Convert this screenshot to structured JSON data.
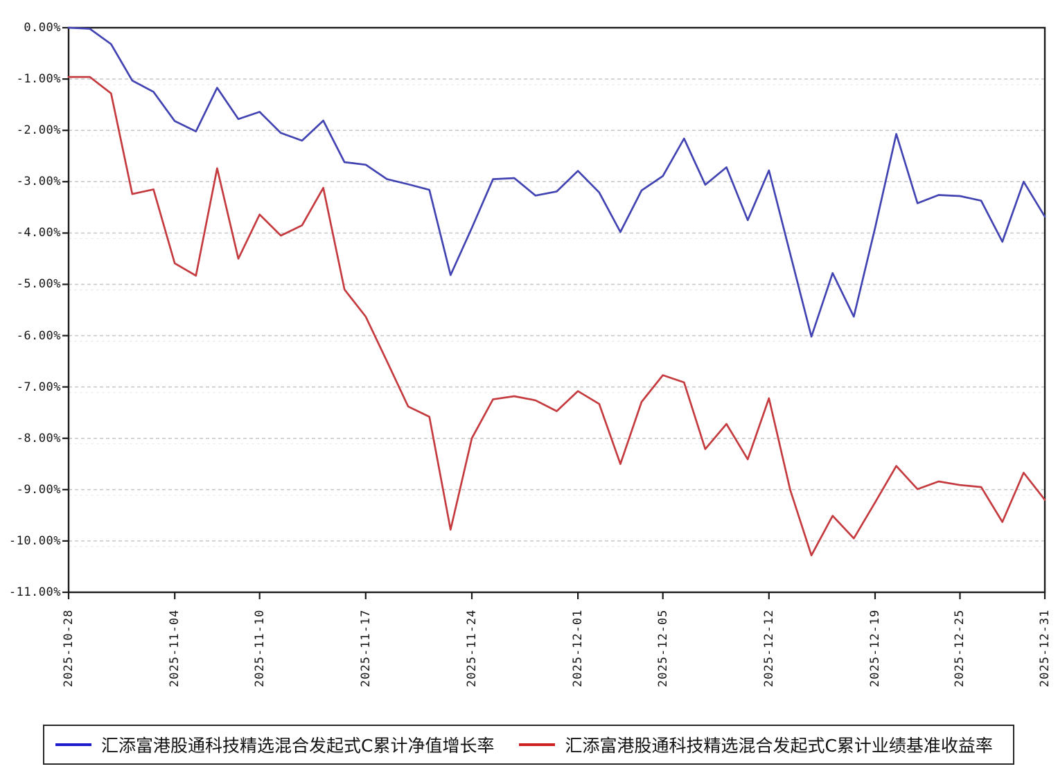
{
  "chart_data": {
    "type": "line",
    "title": "",
    "xlabel": "",
    "ylabel": "",
    "ylim": [
      -11,
      0
    ],
    "grid": "horizontal-dashed",
    "legend_position": "bottom-boxed",
    "background": "#ffffff",
    "axis_color": "#1a1a1a",
    "grid_color": "#c6c6c6",
    "grid_echo_color": "#ececec",
    "tick_label_color": "#141414",
    "y_tick_labels": [
      "0.00%",
      "-1.00%",
      "-2.00%",
      "-3.00%",
      "-4.00%",
      "-5.00%",
      "-6.00%",
      "-7.00%",
      "-8.00%",
      "-9.00%",
      "-10.00%",
      "-11.00%"
    ],
    "x_tick_dates": [
      "2025-10-28",
      "2025-11-04",
      "2025-11-10",
      "2025-11-17",
      "2025-11-24",
      "2025-12-01",
      "2025-12-05",
      "2025-12-12",
      "2025-12-19",
      "2025-12-25",
      "2025-12-31"
    ],
    "x_tick_indices": [
      0,
      5,
      9,
      14,
      19,
      24,
      28,
      33,
      38,
      42,
      46
    ],
    "x": [
      "2025-10-28",
      "2025-10-29",
      "2025-10-30",
      "2025-10-31",
      "2025-11-03",
      "2025-11-04",
      "2025-11-05",
      "2025-11-06",
      "2025-11-07",
      "2025-11-10",
      "2025-11-11",
      "2025-11-12",
      "2025-11-13",
      "2025-11-14",
      "2025-11-17",
      "2025-11-18",
      "2025-11-19",
      "2025-11-20",
      "2025-11-21",
      "2025-11-24",
      "2025-11-25",
      "2025-11-26",
      "2025-11-27",
      "2025-11-28",
      "2025-12-01",
      "2025-12-02",
      "2025-12-03",
      "2025-12-04",
      "2025-12-05",
      "2025-12-08",
      "2025-12-09",
      "2025-12-10",
      "2025-12-11",
      "2025-12-12",
      "2025-12-15",
      "2025-12-16",
      "2025-12-17",
      "2025-12-18",
      "2025-12-19",
      "2025-12-22",
      "2025-12-23",
      "2025-12-24",
      "2025-12-25",
      "2025-12-26",
      "2025-12-29",
      "2025-12-30",
      "2025-12-31"
    ],
    "series": [
      {
        "name": "汇添富港股通科技精选混合发起式C累计净值增长率",
        "color": "#1c1ccb",
        "line_color": "#4143b2",
        "values": [
          0.0,
          -0.02,
          -0.32,
          -1.03,
          -1.25,
          -1.82,
          -2.02,
          -1.17,
          -1.78,
          -1.64,
          -2.05,
          -2.2,
          -1.81,
          -2.62,
          -2.67,
          -2.95,
          -3.05,
          -3.16,
          -4.82,
          -3.9,
          -2.95,
          -2.93,
          -3.27,
          -3.19,
          -2.79,
          -3.21,
          -3.98,
          -3.17,
          -2.89,
          -2.16,
          -3.06,
          -2.72,
          -3.75,
          -2.78,
          -4.4,
          -6.02,
          -4.78,
          -5.63,
          -3.9,
          -2.07,
          -3.42,
          -3.26,
          -3.28,
          -3.37,
          -4.17,
          -3.0,
          -3.68
        ]
      },
      {
        "name": "汇添富港股通科技精选混合发起式C累计业绩基准收益率",
        "color": "#cc2222",
        "line_color": "#c43a3e",
        "values": [
          -0.96,
          -0.96,
          -1.28,
          -3.24,
          -3.15,
          -4.59,
          -4.83,
          -2.74,
          -4.5,
          -3.64,
          -4.05,
          -3.85,
          -3.12,
          -5.1,
          -5.63,
          -6.5,
          -7.38,
          -7.58,
          -9.78,
          -8.0,
          -7.24,
          -7.18,
          -7.26,
          -7.47,
          -7.08,
          -7.33,
          -8.5,
          -7.29,
          -6.77,
          -6.91,
          -8.21,
          -7.72,
          -8.41,
          -7.22,
          -9.0,
          -10.28,
          -9.51,
          -9.95,
          -9.25,
          -8.54,
          -8.99,
          -8.84,
          -8.91,
          -8.95,
          -9.63,
          -8.67,
          -9.2
        ]
      }
    ]
  }
}
